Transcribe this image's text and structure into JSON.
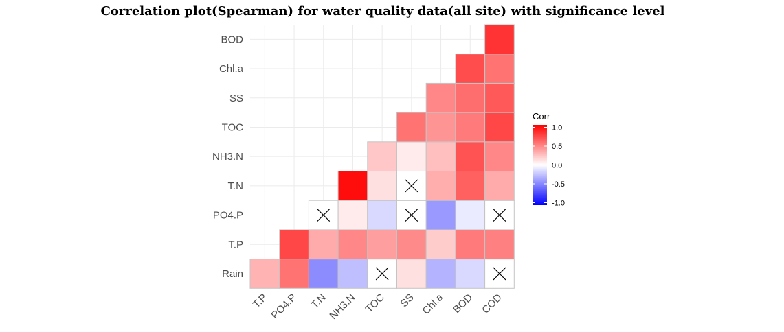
{
  "chart_data": {
    "type": "heatmap",
    "title": "Correlation plot(Spearman) for water quality data(all site) with significance level",
    "x_categories": [
      "T.P",
      "PO4.P",
      "T.N",
      "NH3.N",
      "TOC",
      "SS",
      "Chl.a",
      "BOD",
      "COD"
    ],
    "y_categories": [
      "Rain",
      "T.P",
      "PO4.P",
      "T.N",
      "NH3.N",
      "TOC",
      "SS",
      "Chl.a",
      "BOD"
    ],
    "cells": [
      {
        "x": "T.P",
        "y": "Rain",
        "value": 0.3
      },
      {
        "x": "PO4.P",
        "y": "Rain",
        "value": 0.55
      },
      {
        "x": "T.N",
        "y": "Rain",
        "value": -0.45
      },
      {
        "x": "NH3.N",
        "y": "Rain",
        "value": -0.25
      },
      {
        "x": "TOC",
        "y": "Rain",
        "value": 0.0,
        "not_significant": true
      },
      {
        "x": "SS",
        "y": "Rain",
        "value": 0.12
      },
      {
        "x": "Chl.a",
        "y": "Rain",
        "value": -0.3
      },
      {
        "x": "BOD",
        "y": "Rain",
        "value": -0.15
      },
      {
        "x": "COD",
        "y": "Rain",
        "value": 0.0,
        "not_significant": true
      },
      {
        "x": "PO4.P",
        "y": "T.P",
        "value": 0.72
      },
      {
        "x": "T.N",
        "y": "T.P",
        "value": 0.33
      },
      {
        "x": "NH3.N",
        "y": "T.P",
        "value": 0.47
      },
      {
        "x": "TOC",
        "y": "T.P",
        "value": 0.38
      },
      {
        "x": "SS",
        "y": "T.P",
        "value": 0.46
      },
      {
        "x": "Chl.a",
        "y": "T.P",
        "value": 0.2
      },
      {
        "x": "BOD",
        "y": "T.P",
        "value": 0.52
      },
      {
        "x": "COD",
        "y": "T.P",
        "value": 0.5
      },
      {
        "x": "T.N",
        "y": "PO4.P",
        "value": 0.0,
        "not_significant": true
      },
      {
        "x": "NH3.N",
        "y": "PO4.P",
        "value": 0.08
      },
      {
        "x": "TOC",
        "y": "PO4.P",
        "value": -0.15
      },
      {
        "x": "SS",
        "y": "PO4.P",
        "value": 0.0,
        "not_significant": true
      },
      {
        "x": "Chl.a",
        "y": "PO4.P",
        "value": -0.4
      },
      {
        "x": "BOD",
        "y": "PO4.P",
        "value": -0.08
      },
      {
        "x": "COD",
        "y": "PO4.P",
        "value": 0.0,
        "not_significant": true
      },
      {
        "x": "NH3.N",
        "y": "T.N",
        "value": 0.95
      },
      {
        "x": "TOC",
        "y": "T.N",
        "value": 0.12
      },
      {
        "x": "SS",
        "y": "T.N",
        "value": 0.0,
        "not_significant": true
      },
      {
        "x": "Chl.a",
        "y": "T.N",
        "value": 0.32
      },
      {
        "x": "BOD",
        "y": "T.N",
        "value": 0.62
      },
      {
        "x": "COD",
        "y": "T.N",
        "value": 0.33
      },
      {
        "x": "TOC",
        "y": "NH3.N",
        "value": 0.22
      },
      {
        "x": "SS",
        "y": "NH3.N",
        "value": 0.08
      },
      {
        "x": "Chl.a",
        "y": "NH3.N",
        "value": 0.25
      },
      {
        "x": "BOD",
        "y": "NH3.N",
        "value": 0.68
      },
      {
        "x": "COD",
        "y": "NH3.N",
        "value": 0.47
      },
      {
        "x": "SS",
        "y": "TOC",
        "value": 0.55
      },
      {
        "x": "Chl.a",
        "y": "TOC",
        "value": 0.42
      },
      {
        "x": "BOD",
        "y": "TOC",
        "value": 0.52
      },
      {
        "x": "COD",
        "y": "TOC",
        "value": 0.72
      },
      {
        "x": "Chl.a",
        "y": "SS",
        "value": 0.47
      },
      {
        "x": "BOD",
        "y": "SS",
        "value": 0.57
      },
      {
        "x": "COD",
        "y": "SS",
        "value": 0.65
      },
      {
        "x": "BOD",
        "y": "Chl.a",
        "value": 0.7
      },
      {
        "x": "COD",
        "y": "Chl.a",
        "value": 0.55
      },
      {
        "x": "COD",
        "y": "BOD",
        "value": 0.8
      }
    ],
    "legend": {
      "title": "Corr",
      "ticks": [
        "1.0",
        "0.5",
        "0.0",
        "-0.5",
        "-1.0"
      ],
      "tick_values": [
        1.0,
        0.5,
        0.0,
        -0.5,
        -1.0
      ],
      "placement": "right"
    },
    "color_scale": {
      "low": "#0000ff",
      "mid": "#ffffff",
      "high": "#ff0000",
      "limits": [
        -1,
        1
      ]
    },
    "grid": true
  }
}
